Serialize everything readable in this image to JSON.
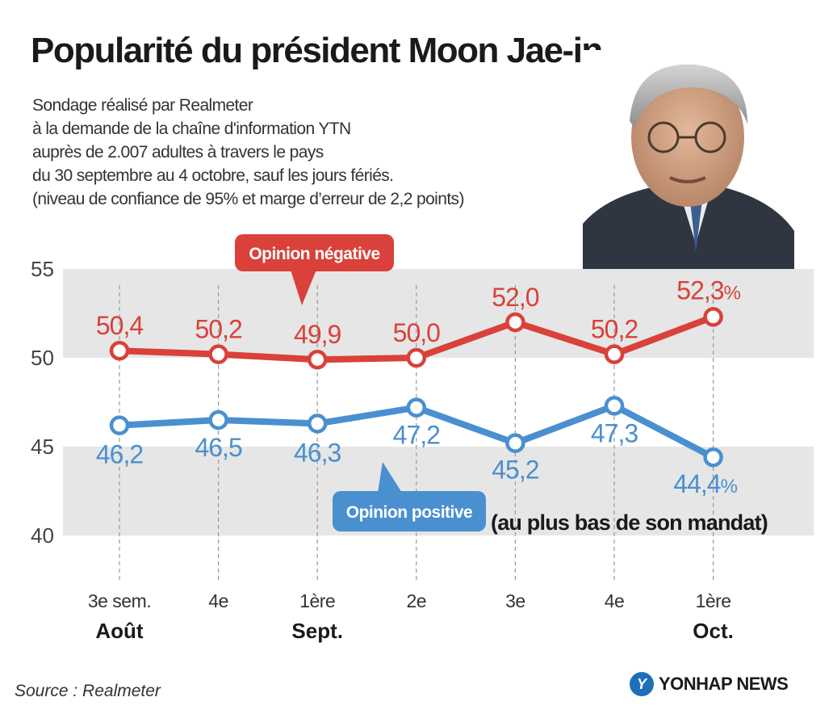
{
  "title": "Popularité du président Moon Jae-in",
  "subtitle_lines": [
    "Sondage réalisé par Realmeter",
    "à la demande de la chaîne d'information YTN",
    "auprès de 2.007 adultes à travers le pays",
    "du 30 septembre au 4 octobre, sauf les jours fériés.",
    "(niveau de confiance de 95%  et marge d’erreur de 2,2 points)"
  ],
  "source": "Source : Realmeter",
  "brand": "YONHAP NEWS",
  "brand_logo": "Y",
  "colors": {
    "negative": "#d9413a",
    "positive": "#4a8fd0",
    "band": "#e6e6e6",
    "axis": "#555555"
  },
  "chart_data": {
    "type": "line",
    "categories": [
      "3e sem.",
      "4e",
      "1ère",
      "2e",
      "3e",
      "4e",
      "1ère"
    ],
    "month_labels": [
      "Août",
      "",
      "Sept.",
      "",
      "",
      "",
      "Oct."
    ],
    "y_ticks": [
      "55",
      "50",
      "45",
      "40"
    ],
    "ylim": [
      40,
      55
    ],
    "grid": "alternating horizontal bands",
    "series": [
      {
        "name": "Opinion négative",
        "values": [
          50.4,
          50.2,
          49.9,
          50.0,
          52.0,
          50.2,
          52.3
        ],
        "labels": [
          "50,4",
          "50,2",
          "49,9",
          "50,0",
          "52,0",
          "50,2",
          "52,3"
        ],
        "last_suffix": "%"
      },
      {
        "name": "Opinion positive",
        "values": [
          46.2,
          46.5,
          46.3,
          47.2,
          45.2,
          47.3,
          44.4
        ],
        "labels": [
          "46,2",
          "46,5",
          "46,3",
          "47,2",
          "45,2",
          "47,3",
          "44,4"
        ],
        "last_suffix": "%"
      }
    ],
    "annotation": "(au plus bas de son mandat)"
  }
}
